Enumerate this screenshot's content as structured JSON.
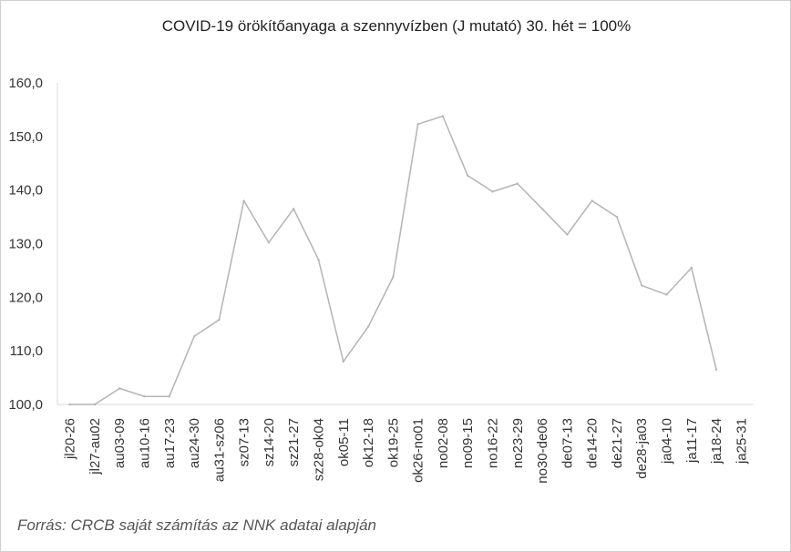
{
  "chart_data": {
    "type": "line",
    "title": "COVID-19 örökítőanyaga a szennyvízben (J mutató) 30. hét = 100%",
    "xlabel": "",
    "ylabel": "",
    "ylim": [
      100,
      160
    ],
    "yticks": [
      "100,0",
      "110,0",
      "120,0",
      "130,0",
      "140,0",
      "150,0",
      "160,0"
    ],
    "grid": false,
    "legend": "none",
    "line_color": "#b4b4b4",
    "categories": [
      "jl20-26",
      "jl27-au02",
      "au03-09",
      "au10-16",
      "au17-23",
      "au24-30",
      "au31-sz06",
      "sz07-13",
      "sz14-20",
      "sz21-27",
      "sz28-ok04",
      "ok05-11",
      "ok12-18",
      "ok19-25",
      "ok26-no01",
      "no02-08",
      "no09-15",
      "no16-22",
      "no23-29",
      "no30-de06",
      "de07-13",
      "de14-20",
      "de21-27",
      "de28-ja03",
      "ja04-10",
      "ja11-17",
      "ja18-24",
      "ja25-31"
    ],
    "values": [
      100.0,
      100.0,
      103.0,
      101.5,
      101.5,
      112.7,
      115.8,
      138.0,
      130.2,
      136.5,
      127.0,
      108.0,
      114.5,
      123.8,
      152.3,
      153.8,
      142.7,
      139.7,
      141.2,
      136.5,
      131.7,
      138.0,
      135.0,
      122.2,
      120.5,
      125.5,
      106.5,
      null
    ]
  },
  "source_note": "Forrás: CRCB saját számítás az NNK adatai alapján"
}
